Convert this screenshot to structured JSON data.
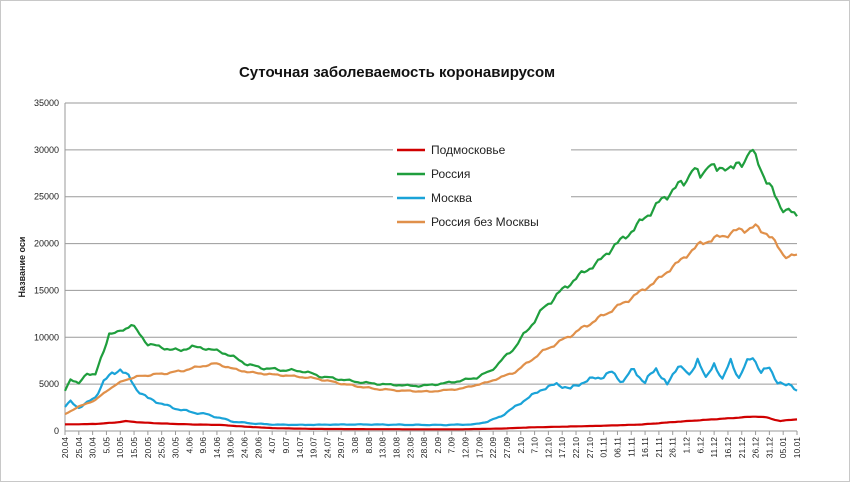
{
  "chart_data": {
    "type": "line",
    "title": "Суточная заболеваемость коронавирусом",
    "xlabel": "",
    "ylabel": "Название оси",
    "ylim": [
      0,
      35000
    ],
    "yticks": [
      0,
      5000,
      10000,
      15000,
      20000,
      25000,
      30000,
      35000
    ],
    "xlim": [
      "2020-04-20",
      "2021-01-10"
    ],
    "xticks": [
      "20.04",
      "25.04",
      "30.04",
      "5.05",
      "10.05",
      "15.05",
      "20.05",
      "25.05",
      "30.05",
      "4.06",
      "9.06",
      "14.06",
      "19.06",
      "24.06",
      "29.06",
      "4.07",
      "9.07",
      "14.07",
      "19.07",
      "24.07",
      "29.07",
      "3.08",
      "8.08",
      "13.08",
      "18.08",
      "23.08",
      "28.08",
      "2.09",
      "7.09",
      "12.09",
      "17.09",
      "22.09",
      "27.09",
      "2.10",
      "7.10",
      "12.10",
      "17.10",
      "22.10",
      "27.10",
      "01.11",
      "06.11",
      "11.11",
      "16.11",
      "21.11",
      "26.11",
      "1.12",
      "6.12",
      "11.12",
      "16.12",
      "21.12",
      "26.12",
      "31.12",
      "05.01",
      "10.01"
    ],
    "grid": true,
    "legend_position": "top-right",
    "series": [
      {
        "name": "Подмосковье",
        "color": "#d00000",
        "points": [
          [
            "2020-04-20",
            700
          ],
          [
            "2020-05-01",
            750
          ],
          [
            "2020-05-08",
            900
          ],
          [
            "2020-05-12",
            1050
          ],
          [
            "2020-05-18",
            900
          ],
          [
            "2020-05-25",
            800
          ],
          [
            "2020-06-05",
            700
          ],
          [
            "2020-06-15",
            650
          ],
          [
            "2020-06-25",
            450
          ],
          [
            "2020-07-05",
            300
          ],
          [
            "2020-07-20",
            220
          ],
          [
            "2020-08-05",
            200
          ],
          [
            "2020-08-25",
            180
          ],
          [
            "2020-09-10",
            180
          ],
          [
            "2020-09-25",
            260
          ],
          [
            "2020-10-05",
            380
          ],
          [
            "2020-10-20",
            480
          ],
          [
            "2020-11-01",
            560
          ],
          [
            "2020-11-15",
            700
          ],
          [
            "2020-11-26",
            950
          ],
          [
            "2020-12-06",
            1150
          ],
          [
            "2020-12-16",
            1350
          ],
          [
            "2020-12-26",
            1550
          ],
          [
            "2020-12-30",
            1450
          ],
          [
            "2021-01-02",
            1200
          ],
          [
            "2021-01-04",
            1050
          ],
          [
            "2021-01-07",
            1180
          ],
          [
            "2021-01-10",
            1250
          ]
        ]
      },
      {
        "name": "Россия",
        "color": "#1f9e3d",
        "points": [
          [
            "2020-04-20",
            4300
          ],
          [
            "2020-04-22",
            5600
          ],
          [
            "2020-04-25",
            5000
          ],
          [
            "2020-04-28",
            6200
          ],
          [
            "2020-05-01",
            6000
          ],
          [
            "2020-05-04",
            8500
          ],
          [
            "2020-05-06",
            10500
          ],
          [
            "2020-05-09",
            10400
          ],
          [
            "2020-05-12",
            11000
          ],
          [
            "2020-05-14",
            11400
          ],
          [
            "2020-05-17",
            10300
          ],
          [
            "2020-05-20",
            9300
          ],
          [
            "2020-05-24",
            9000
          ],
          [
            "2020-05-28",
            8700
          ],
          [
            "2020-06-01",
            8600
          ],
          [
            "2020-06-05",
            9000
          ],
          [
            "2020-06-10",
            8800
          ],
          [
            "2020-06-15",
            8500
          ],
          [
            "2020-06-20",
            7900
          ],
          [
            "2020-06-25",
            7100
          ],
          [
            "2020-07-01",
            6700
          ],
          [
            "2020-07-08",
            6500
          ],
          [
            "2020-07-15",
            6400
          ],
          [
            "2020-07-22",
            5800
          ],
          [
            "2020-07-29",
            5500
          ],
          [
            "2020-08-05",
            5200
          ],
          [
            "2020-08-12",
            5000
          ],
          [
            "2020-08-19",
            4900
          ],
          [
            "2020-08-26",
            4800
          ],
          [
            "2020-09-02",
            5000
          ],
          [
            "2020-09-09",
            5300
          ],
          [
            "2020-09-16",
            5700
          ],
          [
            "2020-09-21",
            6400
          ],
          [
            "2020-09-25",
            7500
          ],
          [
            "2020-09-30",
            9000
          ],
          [
            "2020-10-05",
            11000
          ],
          [
            "2020-10-10",
            13000
          ],
          [
            "2020-10-15",
            14500
          ],
          [
            "2020-10-20",
            15800
          ],
          [
            "2020-10-25",
            17000
          ],
          [
            "2020-10-30",
            18000
          ],
          [
            "2020-11-05",
            19800
          ],
          [
            "2020-11-10",
            21000
          ],
          [
            "2020-11-15",
            22500
          ],
          [
            "2020-11-20",
            24000
          ],
          [
            "2020-11-25",
            25500
          ],
          [
            "2020-11-30",
            26500
          ],
          [
            "2020-12-03",
            28000
          ],
          [
            "2020-12-06",
            27000
          ],
          [
            "2020-12-09",
            28800
          ],
          [
            "2020-12-12",
            27500
          ],
          [
            "2020-12-15",
            28500
          ],
          [
            "2020-12-18",
            27800
          ],
          [
            "2020-12-21",
            28700
          ],
          [
            "2020-12-24",
            29900
          ],
          [
            "2020-12-27",
            28600
          ],
          [
            "2020-12-30",
            26800
          ],
          [
            "2021-01-02",
            25000
          ],
          [
            "2021-01-04",
            24000
          ],
          [
            "2021-01-07",
            23500
          ],
          [
            "2021-01-10",
            22800
          ]
        ]
      },
      {
        "name": "Москва",
        "color": "#1aa3d8",
        "points": [
          [
            "2020-04-20",
            2600
          ],
          [
            "2020-04-22",
            3100
          ],
          [
            "2020-04-25",
            2500
          ],
          [
            "2020-04-28",
            3000
          ],
          [
            "2020-05-01",
            3600
          ],
          [
            "2020-05-04",
            5300
          ],
          [
            "2020-05-07",
            6100
          ],
          [
            "2020-05-10",
            6600
          ],
          [
            "2020-05-13",
            5800
          ],
          [
            "2020-05-16",
            4400
          ],
          [
            "2020-05-20",
            3500
          ],
          [
            "2020-05-25",
            2900
          ],
          [
            "2020-05-30",
            2400
          ],
          [
            "2020-06-05",
            2000
          ],
          [
            "2020-06-10",
            1800
          ],
          [
            "2020-06-15",
            1400
          ],
          [
            "2020-06-20",
            1000
          ],
          [
            "2020-06-27",
            800
          ],
          [
            "2020-07-05",
            680
          ],
          [
            "2020-07-15",
            650
          ],
          [
            "2020-07-25",
            680
          ],
          [
            "2020-08-05",
            700
          ],
          [
            "2020-08-15",
            680
          ],
          [
            "2020-08-25",
            650
          ],
          [
            "2020-09-05",
            650
          ],
          [
            "2020-09-15",
            700
          ],
          [
            "2020-09-20",
            1000
          ],
          [
            "2020-09-25",
            1600
          ],
          [
            "2020-09-30",
            2600
          ],
          [
            "2020-10-05",
            3600
          ],
          [
            "2020-10-10",
            4500
          ],
          [
            "2020-10-15",
            5000
          ],
          [
            "2020-10-20",
            4500
          ],
          [
            "2020-10-25",
            5300
          ],
          [
            "2020-10-30",
            5700
          ],
          [
            "2020-11-04",
            6200
          ],
          [
            "2020-11-08",
            5300
          ],
          [
            "2020-11-12",
            6600
          ],
          [
            "2020-11-16",
            5100
          ],
          [
            "2020-11-20",
            6800
          ],
          [
            "2020-11-24",
            4800
          ],
          [
            "2020-11-28",
            7200
          ],
          [
            "2020-12-02",
            5800
          ],
          [
            "2020-12-05",
            7800
          ],
          [
            "2020-12-08",
            5500
          ],
          [
            "2020-12-11",
            7300
          ],
          [
            "2020-12-14",
            5400
          ],
          [
            "2020-12-17",
            7600
          ],
          [
            "2020-12-20",
            5600
          ],
          [
            "2020-12-23",
            7400
          ],
          [
            "2020-12-25",
            8000
          ],
          [
            "2020-12-28",
            6200
          ],
          [
            "2020-12-31",
            6800
          ],
          [
            "2021-01-03",
            5200
          ],
          [
            "2021-01-06",
            4800
          ],
          [
            "2021-01-08",
            5000
          ],
          [
            "2021-01-10",
            4300
          ]
        ]
      },
      {
        "name": "Россия без Москвы",
        "color": "#e0904a",
        "points": [
          [
            "2020-04-20",
            1800
          ],
          [
            "2020-04-25",
            2600
          ],
          [
            "2020-05-01",
            3300
          ],
          [
            "2020-05-06",
            4500
          ],
          [
            "2020-05-12",
            5500
          ],
          [
            "2020-05-18",
            5900
          ],
          [
            "2020-05-25",
            6100
          ],
          [
            "2020-06-01",
            6400
          ],
          [
            "2020-06-08",
            6900
          ],
          [
            "2020-06-14",
            7200
          ],
          [
            "2020-06-19",
            6700
          ],
          [
            "2020-06-25",
            6300
          ],
          [
            "2020-07-01",
            6100
          ],
          [
            "2020-07-10",
            5900
          ],
          [
            "2020-07-20",
            5600
          ],
          [
            "2020-07-30",
            5000
          ],
          [
            "2020-08-10",
            4500
          ],
          [
            "2020-08-20",
            4300
          ],
          [
            "2020-08-30",
            4200
          ],
          [
            "2020-09-10",
            4500
          ],
          [
            "2020-09-20",
            5200
          ],
          [
            "2020-09-30",
            6300
          ],
          [
            "2020-10-10",
            8500
          ],
          [
            "2020-10-20",
            10200
          ],
          [
            "2020-10-30",
            12000
          ],
          [
            "2020-11-10",
            14000
          ],
          [
            "2020-11-20",
            16000
          ],
          [
            "2020-11-30",
            18500
          ],
          [
            "2020-12-06",
            20000
          ],
          [
            "2020-12-11",
            20500
          ],
          [
            "2020-12-16",
            21000
          ],
          [
            "2020-12-21",
            21500
          ],
          [
            "2020-12-26",
            21700
          ],
          [
            "2020-12-30",
            21200
          ],
          [
            "2021-01-02",
            20000
          ],
          [
            "2021-01-05",
            19000
          ],
          [
            "2021-01-07",
            18500
          ],
          [
            "2021-01-10",
            18700
          ]
        ]
      }
    ]
  }
}
